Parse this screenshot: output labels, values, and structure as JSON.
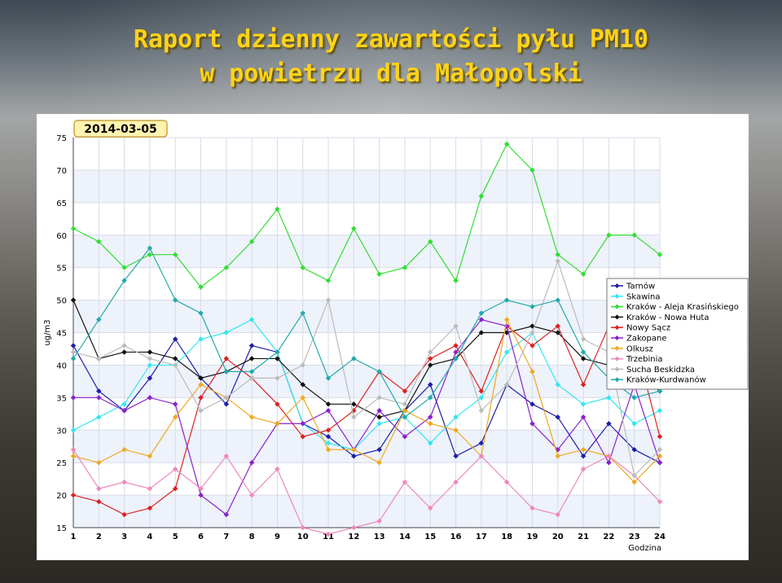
{
  "title_line1": "Raport dzienny zawartości pyłu PM10",
  "title_line2": "w powietrzu dla Małopolski",
  "chart_data": {
    "type": "line",
    "date_label": "2014-03-05",
    "xlabel": "Godzina",
    "ylabel": "ug/m3",
    "x": [
      1,
      2,
      3,
      4,
      5,
      6,
      7,
      8,
      9,
      10,
      11,
      12,
      13,
      14,
      15,
      16,
      17,
      18,
      19,
      20,
      21,
      22,
      23,
      24
    ],
    "ylim": [
      15,
      75
    ],
    "yticks": [
      15,
      20,
      25,
      30,
      35,
      40,
      45,
      50,
      55,
      60,
      65,
      70,
      75
    ],
    "grid": true,
    "legend_position": "right",
    "series": [
      {
        "name": "Tarnów",
        "color": "#1f1fa8",
        "marker": "diamond",
        "values": [
          43,
          36,
          33,
          38,
          44,
          38,
          34,
          43,
          42,
          31,
          29,
          26,
          27,
          33,
          37,
          26,
          28,
          37,
          34,
          32,
          26,
          31,
          27,
          25
        ]
      },
      {
        "name": "Skawina",
        "color": "#33e6f0",
        "marker": "diamond",
        "values": [
          30,
          32,
          34,
          40,
          40,
          44,
          45,
          47,
          42,
          31,
          28,
          27,
          31,
          32,
          28,
          32,
          35,
          42,
          45,
          37,
          34,
          35,
          31,
          33
        ]
      },
      {
        "name": "Kraków - Aleja Krasińskiego",
        "color": "#33dd33",
        "marker": "diamond",
        "values": [
          61,
          59,
          55,
          57,
          57,
          52,
          55,
          59,
          64,
          55,
          53,
          61,
          54,
          55,
          59,
          53,
          66,
          74,
          70,
          57,
          54,
          60,
          60,
          57
        ]
      },
      {
        "name": "Kraków - Nowa Huta",
        "color": "#111111",
        "marker": "diamond",
        "values": [
          50,
          41,
          42,
          42,
          41,
          38,
          39,
          41,
          41,
          37,
          34,
          34,
          32,
          33,
          40,
          41,
          45,
          45,
          46,
          45,
          41,
          40,
          39,
          36
        ]
      },
      {
        "name": "Nowy Sącz",
        "color": "#dd2222",
        "marker": "diamond",
        "values": [
          20,
          19,
          17,
          18,
          21,
          35,
          41,
          38,
          34,
          29,
          30,
          33,
          39,
          36,
          41,
          43,
          36,
          46,
          43,
          46,
          37,
          46,
          44,
          29
        ]
      },
      {
        "name": "Zakopane",
        "color": "#8a22cc",
        "marker": "diamond",
        "values": [
          35,
          35,
          33,
          35,
          34,
          20,
          17,
          25,
          31,
          31,
          33,
          27,
          33,
          29,
          32,
          42,
          47,
          46,
          31,
          27,
          32,
          25,
          37,
          25
        ]
      },
      {
        "name": "Olkusz",
        "color": "#f0a820",
        "marker": "diamond",
        "values": [
          26,
          25,
          27,
          26,
          32,
          37,
          35,
          32,
          31,
          35,
          27,
          27,
          25,
          33,
          31,
          30,
          26,
          47,
          39,
          26,
          27,
          26,
          22,
          26
        ]
      },
      {
        "name": "Trzebinia",
        "color": "#ee88bb",
        "marker": "diamond",
        "values": [
          27,
          21,
          22,
          21,
          24,
          21,
          26,
          20,
          24,
          15,
          14,
          15,
          16,
          22,
          18,
          22,
          26,
          22,
          18,
          17,
          24,
          26,
          23,
          19
        ]
      },
      {
        "name": "Sucha Beskidzka",
        "color": "#bbbbbb",
        "marker": "diamond",
        "values": [
          42,
          41,
          43,
          41,
          40,
          33,
          35,
          38,
          38,
          40,
          50,
          32,
          35,
          34,
          42,
          46,
          33,
          37,
          45,
          56,
          44,
          42,
          23,
          27
        ]
      },
      {
        "name": "Kraków-Kurdwanów",
        "color": "#22aaaa",
        "marker": "diamond",
        "values": [
          41,
          47,
          53,
          58,
          50,
          48,
          39,
          39,
          42,
          48,
          38,
          41,
          39,
          32,
          35,
          41,
          48,
          50,
          49,
          50,
          42,
          38,
          35,
          36
        ]
      }
    ]
  }
}
